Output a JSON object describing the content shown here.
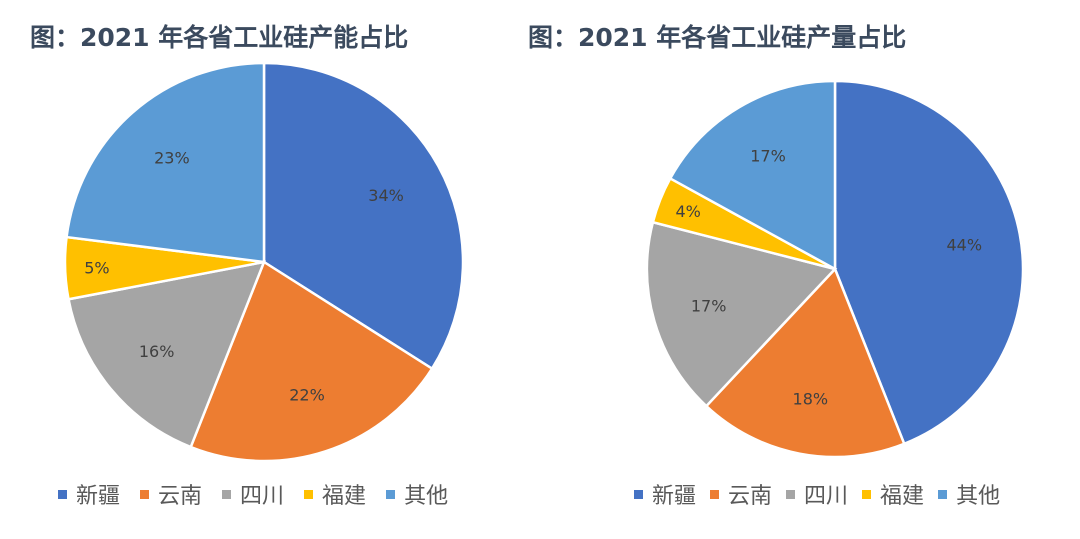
{
  "charts": [
    {
      "title": "图：2021 年各省工业硅产能占比",
      "legend": [
        "新疆",
        "云南",
        "四川",
        "福建",
        "其他"
      ]
    },
    {
      "title": "图：2021 年各省工业硅产量占比",
      "legend": [
        "新疆",
        "云南",
        "四川",
        "福建",
        "其他"
      ]
    }
  ],
  "colors": {
    "新疆": "#4472C4",
    "云南": "#ED7D31",
    "四川": "#A5A5A5",
    "福建": "#FFC000",
    "其他": "#5B9BD5"
  },
  "chart_data": [
    {
      "type": "pie",
      "title": "图：2021 年各省工业硅产能占比",
      "categories": [
        "新疆",
        "云南",
        "四川",
        "福建",
        "其他"
      ],
      "values": [
        34,
        22,
        16,
        5,
        23
      ],
      "labels": [
        "34%",
        "22%",
        "16%",
        "5%",
        "23%"
      ],
      "unit": "%",
      "legend_position": "bottom",
      "start_angle": "12 o'clock, clockwise"
    },
    {
      "type": "pie",
      "title": "图：2021 年各省工业硅产量占比",
      "categories": [
        "新疆",
        "云南",
        "四川",
        "福建",
        "其他"
      ],
      "values": [
        44,
        18,
        17,
        4,
        17
      ],
      "labels": [
        "44%",
        "18%",
        "17%",
        "4%",
        "17%"
      ],
      "unit": "%",
      "legend_position": "bottom",
      "start_angle": "12 o'clock, clockwise"
    }
  ]
}
